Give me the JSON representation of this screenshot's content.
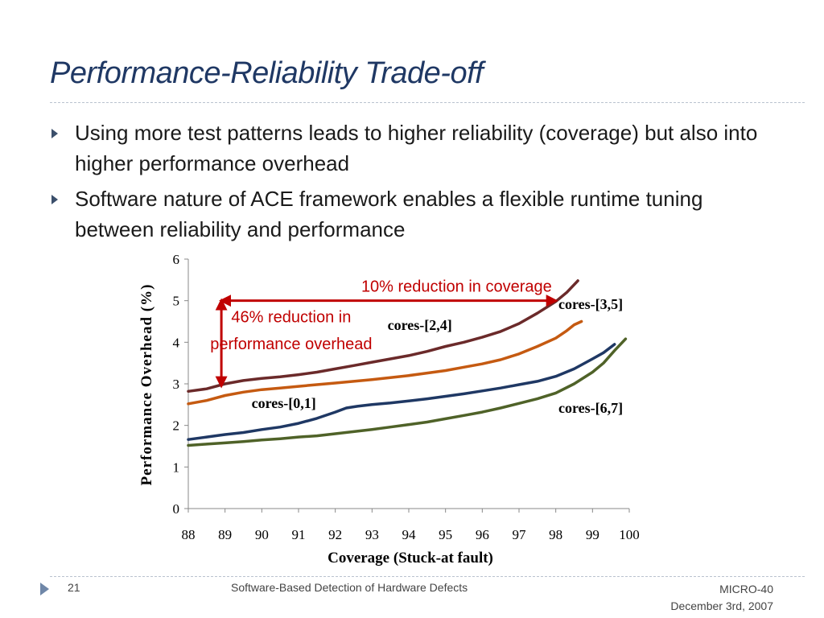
{
  "slide": {
    "title": "Performance-Reliability Trade-off",
    "bullets": [
      "Using more test patterns leads to higher reliability (coverage) but also into higher performance overhead",
      "Software nature of ACE framework enables a flexible runtime tuning between reliability and performance"
    ],
    "footer": {
      "page_number": "21",
      "presentation_title": "Software-Based Detection of Hardware Defects",
      "conference": "MICRO-40",
      "date": "December 3rd, 2007"
    }
  },
  "colors": {
    "title": "#1f3864",
    "annotation": "#c00000",
    "bullet_marker": "#3b4f6b"
  },
  "chart_data": {
    "type": "line",
    "xlabel": "Coverage (Stuck-at fault)",
    "ylabel": "Performance Overhead (%)",
    "xlim": [
      88,
      100
    ],
    "ylim": [
      0,
      6
    ],
    "x_ticks": [
      "88",
      "89",
      "90",
      "91",
      "92",
      "93",
      "94",
      "95",
      "96",
      "97",
      "98",
      "99",
      "100"
    ],
    "y_ticks": [
      "0",
      "1",
      "2",
      "3",
      "4",
      "5",
      "6"
    ],
    "grid": false,
    "series": [
      {
        "name": "cores-[3,5]",
        "color": "#6b2a2a",
        "points": [
          [
            88.0,
            2.82
          ],
          [
            88.5,
            2.88
          ],
          [
            89.0,
            3.0
          ],
          [
            89.5,
            3.08
          ],
          [
            90.0,
            3.13
          ],
          [
            90.5,
            3.17
          ],
          [
            91.0,
            3.22
          ],
          [
            91.5,
            3.28
          ],
          [
            92.0,
            3.36
          ],
          [
            92.5,
            3.44
          ],
          [
            93.0,
            3.52
          ],
          [
            93.5,
            3.6
          ],
          [
            94.0,
            3.68
          ],
          [
            94.5,
            3.78
          ],
          [
            95.0,
            3.9
          ],
          [
            95.5,
            4.0
          ],
          [
            96.0,
            4.12
          ],
          [
            96.5,
            4.26
          ],
          [
            97.0,
            4.45
          ],
          [
            97.5,
            4.7
          ],
          [
            98.0,
            4.98
          ],
          [
            98.3,
            5.2
          ],
          [
            98.6,
            5.48
          ]
        ]
      },
      {
        "name": "cores-[2,4]",
        "color": "#c55a11",
        "points": [
          [
            88.0,
            2.52
          ],
          [
            88.5,
            2.6
          ],
          [
            89.0,
            2.72
          ],
          [
            89.5,
            2.8
          ],
          [
            90.0,
            2.86
          ],
          [
            90.5,
            2.9
          ],
          [
            91.0,
            2.94
          ],
          [
            91.5,
            2.98
          ],
          [
            92.0,
            3.02
          ],
          [
            92.5,
            3.06
          ],
          [
            93.0,
            3.1
          ],
          [
            93.5,
            3.15
          ],
          [
            94.0,
            3.2
          ],
          [
            94.5,
            3.26
          ],
          [
            95.0,
            3.32
          ],
          [
            95.5,
            3.4
          ],
          [
            96.0,
            3.48
          ],
          [
            96.5,
            3.58
          ],
          [
            97.0,
            3.72
          ],
          [
            97.5,
            3.9
          ],
          [
            98.0,
            4.1
          ],
          [
            98.3,
            4.28
          ],
          [
            98.5,
            4.42
          ],
          [
            98.7,
            4.5
          ]
        ]
      },
      {
        "name": "cores-[0,1]",
        "color": "#1f3864",
        "points": [
          [
            88.0,
            1.66
          ],
          [
            88.5,
            1.72
          ],
          [
            89.0,
            1.78
          ],
          [
            89.5,
            1.83
          ],
          [
            90.0,
            1.9
          ],
          [
            90.5,
            1.96
          ],
          [
            91.0,
            2.05
          ],
          [
            91.5,
            2.17
          ],
          [
            92.0,
            2.32
          ],
          [
            92.3,
            2.42
          ],
          [
            92.6,
            2.46
          ],
          [
            93.0,
            2.5
          ],
          [
            93.5,
            2.54
          ],
          [
            94.0,
            2.59
          ],
          [
            94.5,
            2.64
          ],
          [
            95.0,
            2.7
          ],
          [
            95.5,
            2.76
          ],
          [
            96.0,
            2.83
          ],
          [
            96.5,
            2.9
          ],
          [
            97.0,
            2.98
          ],
          [
            97.5,
            3.06
          ],
          [
            98.0,
            3.18
          ],
          [
            98.5,
            3.36
          ],
          [
            99.0,
            3.6
          ],
          [
            99.3,
            3.75
          ],
          [
            99.6,
            3.95
          ]
        ]
      },
      {
        "name": "cores-[6,7]",
        "color": "#4f6228",
        "points": [
          [
            88.0,
            1.52
          ],
          [
            88.5,
            1.55
          ],
          [
            89.0,
            1.58
          ],
          [
            89.5,
            1.61
          ],
          [
            90.0,
            1.65
          ],
          [
            90.5,
            1.68
          ],
          [
            91.0,
            1.72
          ],
          [
            91.5,
            1.75
          ],
          [
            92.0,
            1.8
          ],
          [
            92.5,
            1.85
          ],
          [
            93.0,
            1.9
          ],
          [
            93.5,
            1.96
          ],
          [
            94.0,
            2.02
          ],
          [
            94.5,
            2.08
          ],
          [
            95.0,
            2.16
          ],
          [
            95.5,
            2.24
          ],
          [
            96.0,
            2.32
          ],
          [
            96.5,
            2.42
          ],
          [
            97.0,
            2.53
          ],
          [
            97.5,
            2.64
          ],
          [
            98.0,
            2.78
          ],
          [
            98.5,
            3.0
          ],
          [
            99.0,
            3.28
          ],
          [
            99.3,
            3.5
          ],
          [
            99.6,
            3.8
          ],
          [
            99.9,
            4.08
          ]
        ]
      }
    ],
    "series_labels": [
      {
        "text": "cores-[3,5]",
        "x": 98.95,
        "y": 4.8
      },
      {
        "text": "cores-[2,4]",
        "x": 94.3,
        "y": 4.3
      },
      {
        "text": "cores-[0,1]",
        "x": 90.6,
        "y": 2.42
      },
      {
        "text": "cores-[6,7]",
        "x": 98.95,
        "y": 2.3
      }
    ],
    "annotations": [
      {
        "text": "10% reduction in coverage",
        "x": 95.3,
        "y": 5.22
      },
      {
        "text": "46% reduction in",
        "x": 90.8,
        "y": 4.48
      },
      {
        "text": "performance overhead",
        "x": 90.8,
        "y": 3.83
      }
    ],
    "arrows": [
      {
        "kind": "horizontal",
        "x_from": 88.9,
        "x_to": 98.0,
        "y": 5.0
      },
      {
        "kind": "vertical",
        "x": 88.9,
        "y_from": 5.0,
        "y_to": 2.95
      }
    ]
  }
}
